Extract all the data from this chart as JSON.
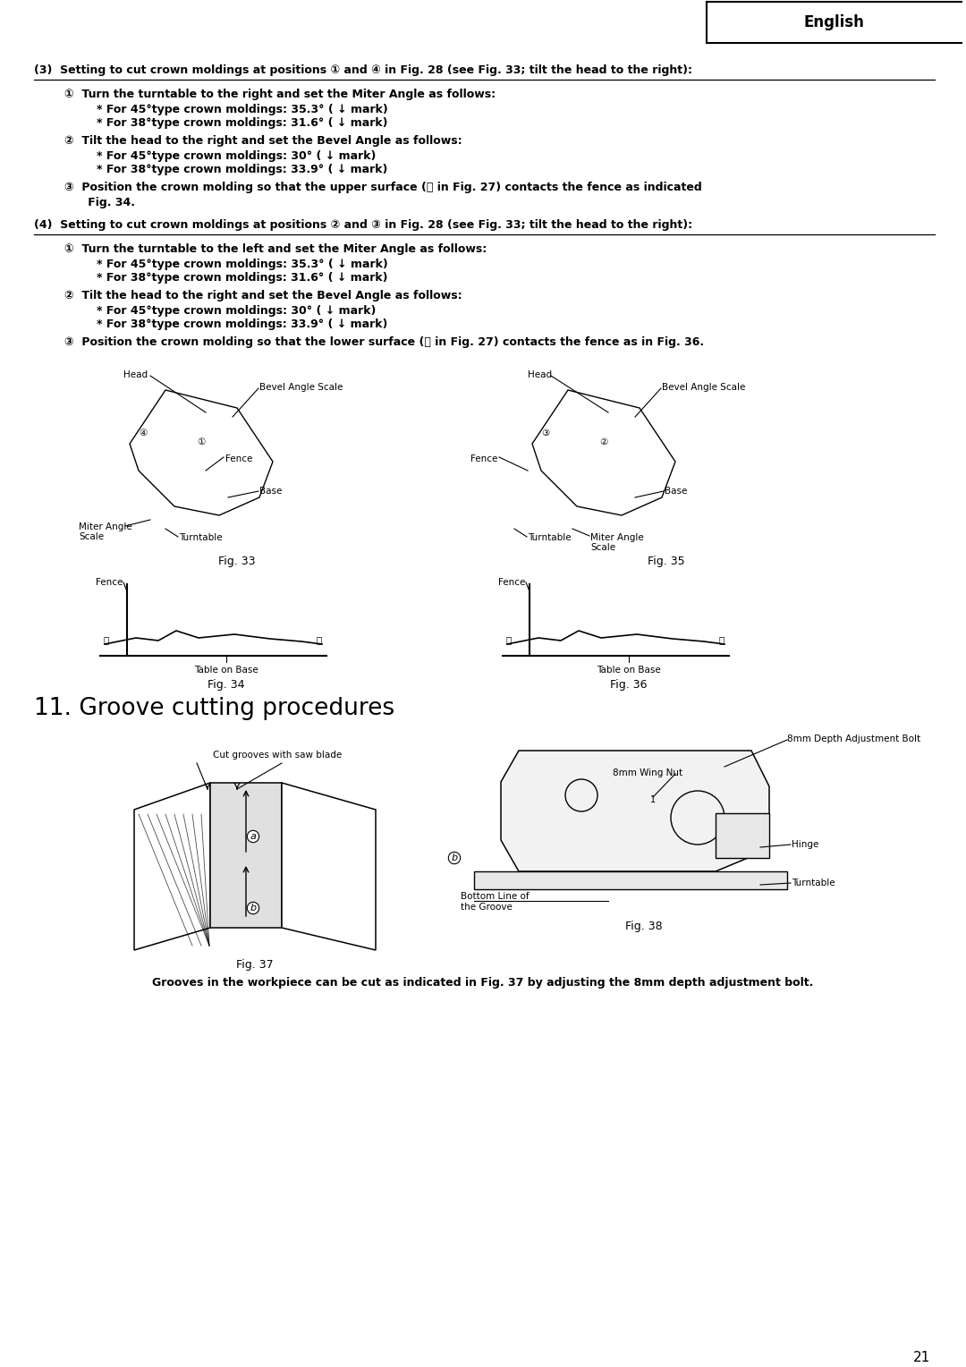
{
  "page_num": "21",
  "header_text": "English",
  "bg": "#ffffff",
  "s3_heading": "(3)  Setting to cut crown moldings at positions ① and ④ in Fig. 28 (see Fig. 33; tilt the head to the right):",
  "s3_i1_main": "①  Turn the turntable to the right and set the Miter Angle as follows:",
  "s3_i1_sub1": "* For 45°type crown moldings: 35.3° ( ↓ mark)",
  "s3_i1_sub2": "* For 38°type crown moldings: 31.6° ( ↓ mark)",
  "s3_i2_main": "②  Tilt the head to the right and set the Bevel Angle as follows:",
  "s3_i2_sub1": "* For 45°type crown moldings: 30° ( ↓ mark)",
  "s3_i2_sub2": "* For 38°type crown moldings: 33.9° ( ↓ mark)",
  "s3_i3_main": "③  Position the crown molding so that the upper surface (Ⓑ in Fig. 27) contacts the fence as indicated",
  "s3_i3_cont": "      Fig. 34.",
  "s4_heading": "(4)  Setting to cut crown moldings at positions ② and ③ in Fig. 28 (see Fig. 33; tilt the head to the right):",
  "s4_i1_main": "①  Turn the turntable to the left and set the Miter Angle as follows:",
  "s4_i1_sub1": "* For 45°type crown moldings: 35.3° ( ↓ mark)",
  "s4_i1_sub2": "* For 38°type crown moldings: 31.6° ( ↓ mark)",
  "s4_i2_main": "②  Tilt the head to the right and set the Bevel Angle as follows:",
  "s4_i2_sub1": "* For 45°type crown moldings: 30° ( ↓ mark)",
  "s4_i2_sub2": "* For 38°type crown moldings: 33.9° ( ↓ mark)",
  "s4_i3_main": "③  Position the crown molding so that the lower surface (Ⓐ in Fig. 27) contacts the fence as in Fig. 36.",
  "fig33_label": "Fig. 33",
  "fig35_label": "Fig. 35",
  "fig34_label": "Fig. 34",
  "fig36_label": "Fig. 36",
  "fig37_label": "Fig. 37",
  "fig38_label": "Fig. 38",
  "s11_heading": "11. Groove cutting procedures",
  "fig37_ann": "Cut grooves with saw blade",
  "fig38_label1": "8mm Depth Adjustment Bolt",
  "fig38_label2": "8mm Wing Nut",
  "fig38_label3": "Hinge",
  "fig38_label4": "Turntable",
  "fig38_label5": "Bottom Line of\nthe Groove",
  "footer": "Grooves in the workpiece can be cut as indicated in Fig. 37 by adjusting the 8mm depth adjustment bolt.",
  "lfs": 9.0,
  "sfs": 7.5,
  "s11fs": 19.0
}
